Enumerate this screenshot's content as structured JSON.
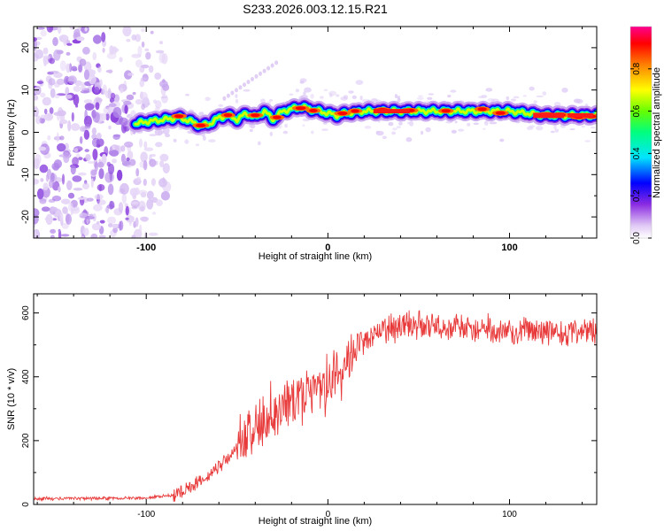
{
  "figure": {
    "title": "S233.2026.003.12.15.R21"
  },
  "chart_data": [
    {
      "type": "heatmap",
      "xlabel": "Height of straight line (km)",
      "ylabel": "Frequency (Hz)",
      "xlim": [
        -162,
        148
      ],
      "ylim": [
        -25,
        25
      ],
      "xticks": [
        -100,
        0,
        100
      ],
      "xtick_labels": [
        "-100",
        "0",
        "100"
      ],
      "yticks": [
        -20,
        -10,
        0,
        10,
        20
      ],
      "ytick_labels": [
        "-20",
        "-10",
        "0",
        "10",
        "20"
      ],
      "colorbar": {
        "label": "Normalized spectral amplitude",
        "range": [
          0,
          1
        ],
        "ticks": [
          0.0,
          0.2,
          0.4,
          0.6,
          0.8
        ],
        "tick_labels": [
          "0.0",
          "0.2",
          "0.4",
          "0.6",
          "0.8"
        ]
      },
      "ridge": {
        "description_series": "peak frequency vs height",
        "x": [
          -106,
          -100,
          -90,
          -82,
          -75,
          -70,
          -65,
          -60,
          -55,
          -50,
          -45,
          -40,
          -35,
          -30,
          -25,
          -20,
          -15,
          -10,
          -5,
          0,
          5,
          10,
          20,
          40,
          60,
          80,
          100,
          110,
          120,
          148
        ],
        "y": [
          2,
          2.5,
          3,
          3.5,
          2.5,
          1.5,
          2,
          3.5,
          4,
          3,
          4.5,
          3.5,
          5,
          3,
          5,
          5.5,
          6,
          5.5,
          5,
          4.5,
          4,
          4.5,
          5,
          5,
          5,
          5,
          5,
          4.5,
          4,
          4
        ]
      },
      "noise_region_x": [
        -162,
        -100
      ]
    },
    {
      "type": "line",
      "xlabel": "Height of straight line (km)",
      "ylabel": "SNR (10 * v/v)",
      "xlim": [
        -162,
        148
      ],
      "ylim": [
        0,
        660
      ],
      "xticks": [
        -100,
        0,
        100
      ],
      "xtick_labels": [
        "-100",
        "0",
        "100"
      ],
      "yticks": [
        0,
        200,
        400,
        600
      ],
      "ytick_labels": [
        "0",
        "200",
        "400",
        "600"
      ],
      "color": "#e83a3a",
      "trend": {
        "x": [
          -162,
          -100,
          -85,
          -75,
          -65,
          -55,
          -45,
          -35,
          -25,
          -15,
          -5,
          0,
          5,
          15,
          25,
          35,
          50,
          70,
          100,
          148
        ],
        "y": [
          18,
          20,
          30,
          55,
          95,
          145,
          205,
          260,
          300,
          330,
          355,
          380,
          420,
          490,
          535,
          555,
          560,
          555,
          545,
          540
        ]
      }
    }
  ]
}
